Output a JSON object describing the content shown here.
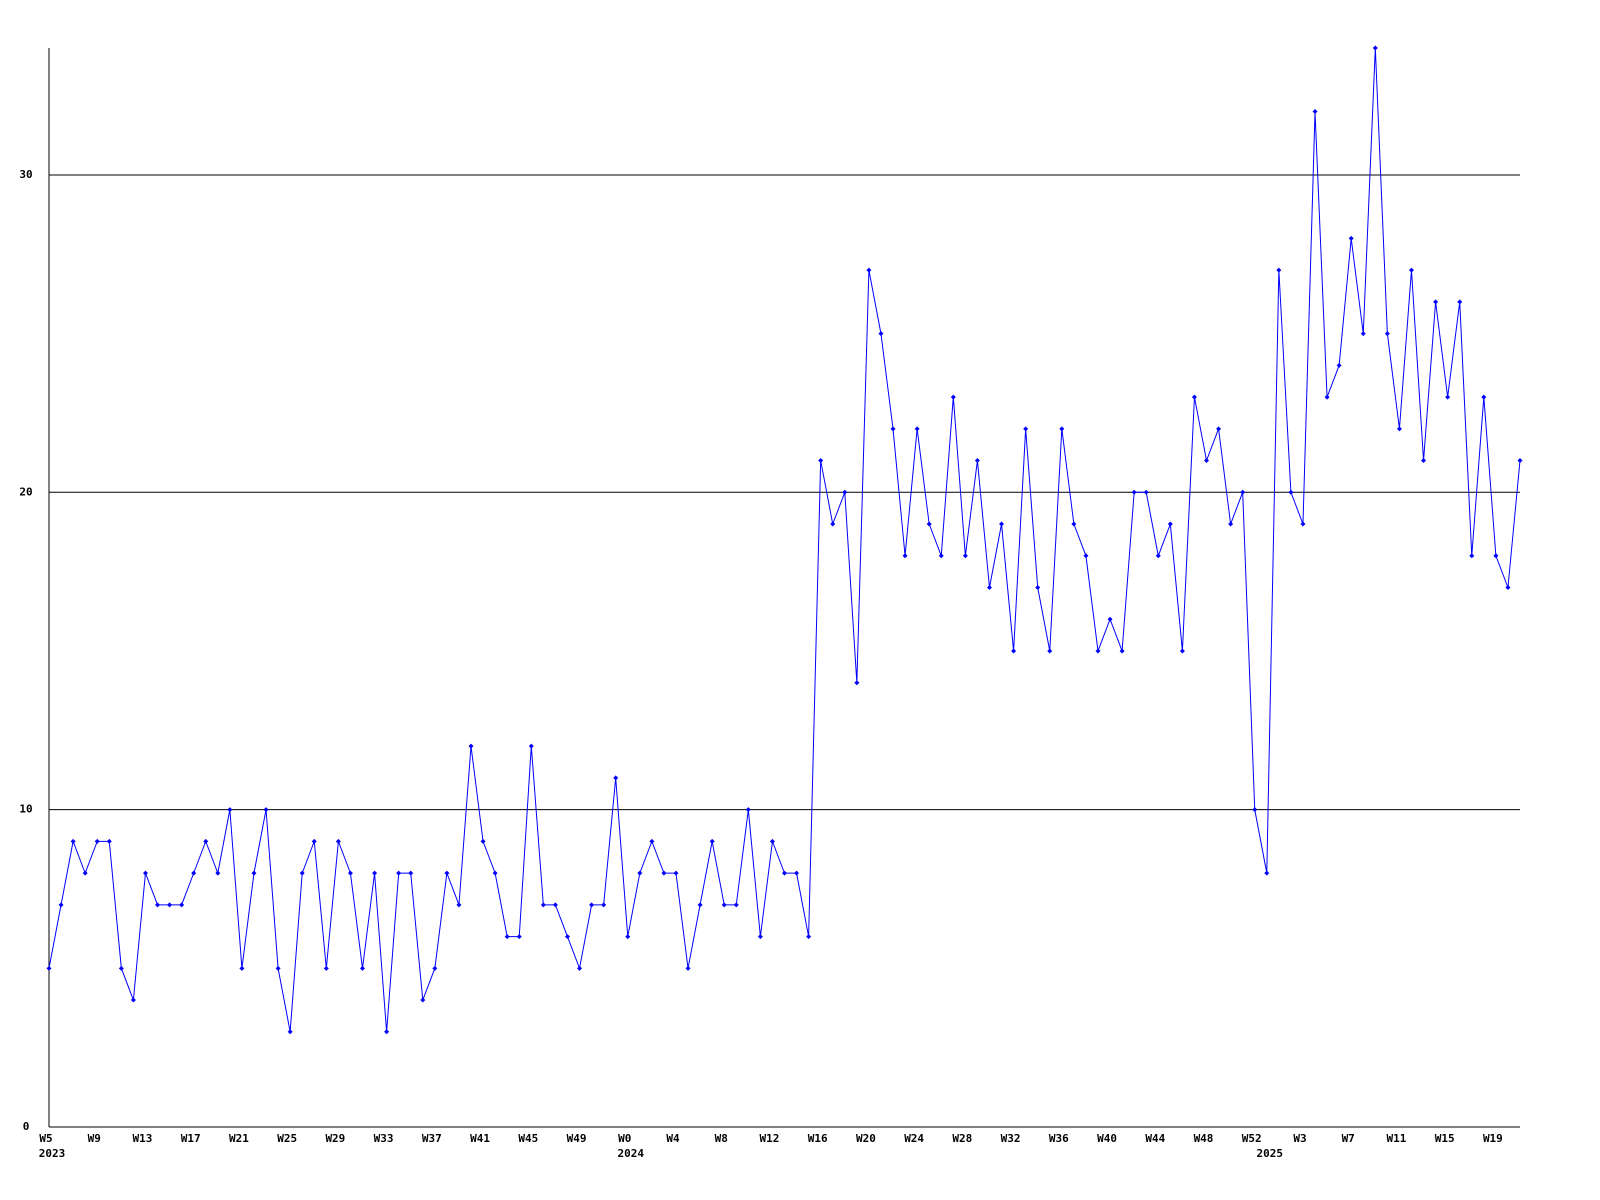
{
  "chart_data": {
    "type": "line",
    "categories": [
      "W5",
      null,
      null,
      null,
      "W9",
      null,
      null,
      null,
      "W13",
      null,
      null,
      null,
      "W17",
      null,
      null,
      null,
      "W21",
      null,
      null,
      null,
      "W25",
      null,
      null,
      null,
      "W29",
      null,
      null,
      null,
      "W33",
      null,
      null,
      null,
      "W37",
      null,
      null,
      null,
      "W41",
      null,
      null,
      null,
      "W45",
      null,
      null,
      null,
      "W49",
      null,
      null,
      null,
      "W0",
      null,
      null,
      null,
      "W4",
      null,
      null,
      null,
      "W8",
      null,
      null,
      null,
      "W12",
      null,
      null,
      null,
      "W16",
      null,
      null,
      null,
      "W20",
      null,
      null,
      null,
      "W24",
      null,
      null,
      null,
      "W28",
      null,
      null,
      null,
      "W32",
      null,
      null,
      null,
      "W36",
      null,
      null,
      null,
      "W40",
      null,
      null,
      null,
      "W44",
      null,
      null,
      null,
      "W48",
      null,
      null,
      null,
      "W52",
      null,
      null,
      null,
      "W3",
      null,
      null,
      null,
      "W7",
      null,
      null,
      null,
      "W11",
      null,
      null,
      null,
      "W15",
      null,
      null,
      null,
      "W19",
      null,
      null
    ],
    "category_years": [
      "2023",
      null,
      null,
      null,
      null,
      null,
      null,
      null,
      null,
      null,
      null,
      null,
      null,
      null,
      null,
      null,
      null,
      null,
      null,
      null,
      null,
      null,
      null,
      null,
      null,
      null,
      null,
      null,
      null,
      null,
      null,
      null,
      null,
      null,
      null,
      null,
      null,
      null,
      null,
      null,
      null,
      null,
      null,
      null,
      null,
      null,
      null,
      null,
      "2024",
      null,
      null,
      null,
      null,
      null,
      null,
      null,
      null,
      null,
      null,
      null,
      null,
      null,
      null,
      null,
      null,
      null,
      null,
      null,
      null,
      null,
      null,
      null,
      null,
      null,
      null,
      null,
      null,
      null,
      null,
      null,
      null,
      null,
      null,
      null,
      null,
      null,
      null,
      null,
      null,
      null,
      null,
      null,
      null,
      null,
      null,
      null,
      null,
      null,
      null,
      null,
      null,
      "2025",
      null,
      null,
      null,
      null,
      null,
      null,
      null,
      null,
      null,
      null,
      null,
      null,
      null,
      null,
      null,
      null,
      null,
      null,
      null,
      null,
      null
    ],
    "series": [
      {
        "color": "#0000ff",
        "values": [
          5,
          7,
          9,
          8,
          9,
          9,
          5,
          4,
          8,
          7,
          7,
          7,
          8,
          9,
          8,
          10,
          5,
          8,
          10,
          5,
          3,
          8,
          9,
          5,
          9,
          8,
          5,
          8,
          3,
          8,
          8,
          4,
          5,
          8,
          7,
          12,
          9,
          8,
          6,
          6,
          12,
          7,
          7,
          6,
          5,
          7,
          7,
          11,
          6,
          8,
          9,
          8,
          8,
          5,
          7,
          9,
          7,
          7,
          10,
          6,
          9,
          8,
          8,
          6,
          21,
          19,
          20,
          14,
          27,
          25,
          22,
          18,
          22,
          19,
          18,
          23,
          18,
          21,
          17,
          19,
          15,
          22,
          17,
          15,
          22,
          19,
          18,
          15,
          16,
          15,
          20,
          20,
          18,
          19,
          15,
          23,
          21,
          22,
          19,
          20,
          10,
          8,
          27,
          20,
          19,
          32,
          23,
          24,
          28,
          25,
          34,
          25,
          22,
          27,
          21,
          26,
          23,
          26,
          18,
          23,
          18,
          17,
          21
        ]
      }
    ],
    "ylim": [
      0,
      34
    ],
    "yticks": [
      0,
      10,
      20,
      30
    ],
    "grid": true,
    "grid_color": "#000000",
    "markers": true
  }
}
